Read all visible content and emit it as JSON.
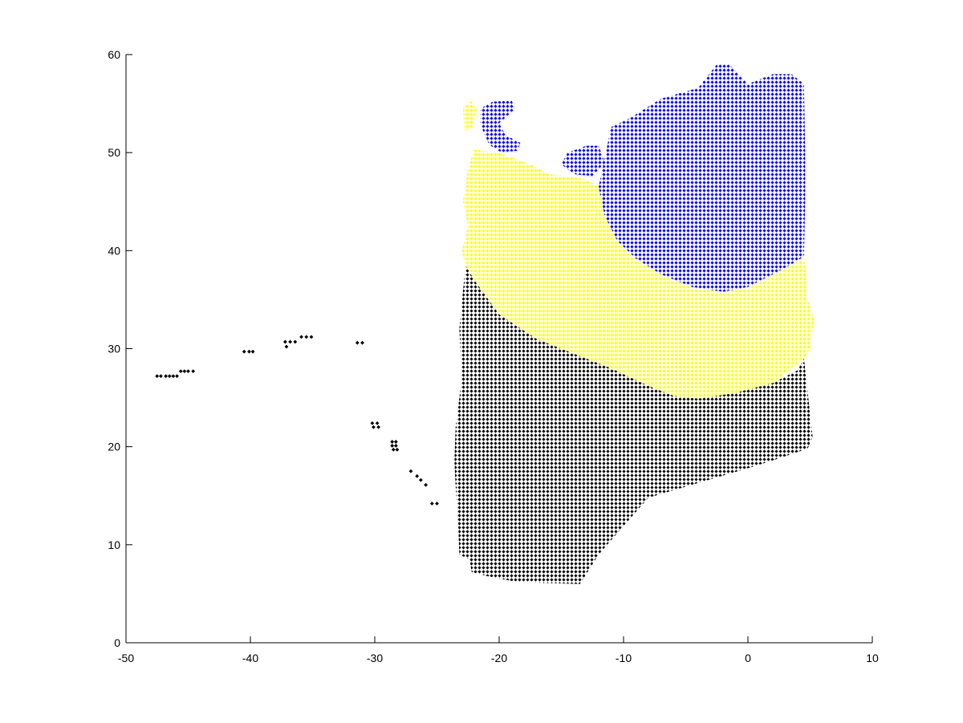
{
  "chart_data": {
    "type": "scatter",
    "title": "",
    "xlabel": "",
    "ylabel": "",
    "xlim": [
      -50,
      10
    ],
    "ylim": [
      0,
      60
    ],
    "xticks": [
      -50,
      -40,
      -30,
      -20,
      -10,
      0,
      10
    ],
    "yticks": [
      0,
      10,
      20,
      30,
      40,
      50,
      60
    ],
    "xtick_labels": [
      "-50",
      "-40",
      "-30",
      "-20",
      "-10",
      "0",
      "10"
    ],
    "ytick_labels": [
      "0",
      "10",
      "20",
      "30",
      "40",
      "50",
      "60"
    ],
    "grid": false,
    "legend": "none",
    "marker": "diamond",
    "series": [
      {
        "color": "#000000",
        "points": [
          [
            -47.5,
            27.2
          ],
          [
            -47.2,
            27.2
          ],
          [
            -46.8,
            27.2
          ],
          [
            -46.5,
            27.2
          ],
          [
            -46.2,
            27.2
          ],
          [
            -45.9,
            27.2
          ],
          [
            -45.6,
            27.7
          ],
          [
            -45.3,
            27.7
          ],
          [
            -45.0,
            27.7
          ],
          [
            -44.6,
            27.7
          ],
          [
            -40.5,
            29.7
          ],
          [
            -40.1,
            29.7
          ],
          [
            -39.8,
            29.7
          ],
          [
            -37.2,
            30.7
          ],
          [
            -36.8,
            30.7
          ],
          [
            -36.4,
            30.7
          ],
          [
            -37.1,
            30.2
          ],
          [
            -35.9,
            31.2
          ],
          [
            -35.5,
            31.2
          ],
          [
            -35.1,
            31.2
          ],
          [
            -31.4,
            30.6
          ],
          [
            -31.0,
            30.6
          ],
          [
            -30.2,
            22.4
          ],
          [
            -29.8,
            22.4
          ],
          [
            -30.1,
            22.0
          ],
          [
            -29.7,
            22.0
          ],
          [
            -28.6,
            20.5
          ],
          [
            -28.3,
            20.5
          ],
          [
            -28.6,
            20.1
          ],
          [
            -28.3,
            20.1
          ],
          [
            -28.5,
            19.7
          ],
          [
            -28.2,
            19.7
          ],
          [
            -27.1,
            17.5
          ],
          [
            -26.6,
            17.0
          ],
          [
            -26.3,
            16.6
          ],
          [
            -25.9,
            16.1
          ],
          [
            -25.4,
            14.2
          ],
          [
            -25.0,
            14.2
          ]
        ]
      },
      {
        "color": "#000000",
        "points": []
      },
      {
        "color": "#ffff00",
        "points": []
      },
      {
        "color": "#0000ff",
        "points": []
      }
    ],
    "regions": [
      {
        "color": "#000000",
        "polygon": [
          [
            -22.7,
            38.5
          ],
          [
            -22.0,
            37.0
          ],
          [
            -20.0,
            33.5
          ],
          [
            -17.0,
            31.0
          ],
          [
            -14.0,
            29.5
          ],
          [
            -11.0,
            28.0
          ],
          [
            -8.0,
            26.2
          ],
          [
            -6.0,
            25.2
          ],
          [
            -4.0,
            24.9
          ],
          [
            -1.0,
            25.5
          ],
          [
            2.0,
            26.5
          ],
          [
            4.0,
            27.8
          ],
          [
            4.5,
            29.0
          ],
          [
            5.2,
            21.0
          ],
          [
            4.8,
            19.8
          ],
          [
            2.0,
            18.6
          ],
          [
            0.0,
            17.8
          ],
          [
            -4.0,
            16.3
          ],
          [
            -8.0,
            14.8
          ],
          [
            -12.0,
            9.0
          ],
          [
            -13.5,
            6.0
          ],
          [
            -16.5,
            6.1
          ],
          [
            -19.0,
            6.3
          ],
          [
            -21.0,
            6.8
          ],
          [
            -22.2,
            7.2
          ],
          [
            -22.4,
            8.5
          ],
          [
            -23.2,
            9.0
          ],
          [
            -23.3,
            12.0
          ],
          [
            -23.5,
            16.0
          ],
          [
            -23.6,
            18.5
          ],
          [
            -23.5,
            22.0
          ],
          [
            -23.0,
            27.0
          ],
          [
            -23.2,
            32.0
          ],
          [
            -22.9,
            36.0
          ]
        ]
      },
      {
        "color": "#ffff00",
        "polygon": [
          [
            -22.5,
            48.5
          ],
          [
            -22.0,
            50.3
          ],
          [
            -20.0,
            50.0
          ],
          [
            -17.5,
            48.8
          ],
          [
            -16.0,
            47.8
          ],
          [
            -14.5,
            47.6
          ],
          [
            -13.0,
            47.3
          ],
          [
            -12.0,
            46.5
          ],
          [
            -11.5,
            43.5
          ],
          [
            -10.5,
            41.0
          ],
          [
            -9.0,
            39.2
          ],
          [
            -7.0,
            37.6
          ],
          [
            -4.5,
            36.3
          ],
          [
            -2.0,
            35.8
          ],
          [
            0.0,
            36.3
          ],
          [
            2.0,
            37.6
          ],
          [
            3.5,
            38.6
          ],
          [
            4.5,
            39.4
          ],
          [
            4.8,
            35.0
          ],
          [
            5.3,
            33.0
          ],
          [
            5.0,
            30.0
          ],
          [
            4.5,
            29.0
          ],
          [
            2.0,
            26.5
          ],
          [
            -1.0,
            25.5
          ],
          [
            -4.0,
            24.9
          ],
          [
            -6.0,
            25.2
          ],
          [
            -8.0,
            26.2
          ],
          [
            -11.0,
            28.0
          ],
          [
            -14.0,
            29.5
          ],
          [
            -17.0,
            31.0
          ],
          [
            -20.0,
            33.5
          ],
          [
            -22.0,
            37.0
          ],
          [
            -22.7,
            38.5
          ],
          [
            -23.0,
            40.0
          ],
          [
            -22.5,
            42.5
          ],
          [
            -22.9,
            45.0
          ]
        ]
      },
      {
        "color": "#ffff00",
        "polygon": [
          [
            -22.9,
            54.6
          ],
          [
            -22.3,
            55.3
          ],
          [
            -21.8,
            54.4
          ],
          [
            -22.2,
            52.4
          ],
          [
            -22.8,
            52.2
          ]
        ]
      },
      {
        "color": "#0000ff",
        "polygon": [
          [
            -12.0,
            46.5
          ],
          [
            -11.0,
            52.6
          ],
          [
            -9.5,
            53.5
          ],
          [
            -7.0,
            55.5
          ],
          [
            -4.0,
            56.6
          ],
          [
            -2.5,
            59.0
          ],
          [
            -1.5,
            59.0
          ],
          [
            0.0,
            57.0
          ],
          [
            2.0,
            58.0
          ],
          [
            3.5,
            58.0
          ],
          [
            4.5,
            57.0
          ],
          [
            4.6,
            50.0
          ],
          [
            4.6,
            45.0
          ],
          [
            4.5,
            39.4
          ],
          [
            3.5,
            38.6
          ],
          [
            2.0,
            37.6
          ],
          [
            0.0,
            36.3
          ],
          [
            -2.0,
            35.8
          ],
          [
            -4.5,
            36.3
          ],
          [
            -7.0,
            37.6
          ],
          [
            -9.0,
            39.2
          ],
          [
            -10.5,
            41.0
          ],
          [
            -11.5,
            43.5
          ]
        ]
      },
      {
        "color": "#0000ff",
        "polygon": [
          [
            -15.0,
            48.8
          ],
          [
            -14.5,
            50.0
          ],
          [
            -13.0,
            50.7
          ],
          [
            -12.0,
            50.7
          ],
          [
            -11.5,
            49.0
          ],
          [
            -12.5,
            47.6
          ],
          [
            -14.0,
            47.8
          ]
        ]
      },
      {
        "color": "#0000ff",
        "polygon": [
          [
            -21.5,
            52.8
          ],
          [
            -21.5,
            54.5
          ],
          [
            -20.5,
            55.2
          ],
          [
            -19.0,
            55.3
          ],
          [
            -18.7,
            54.5
          ],
          [
            -20.0,
            53.0
          ],
          [
            -19.5,
            51.8
          ],
          [
            -18.3,
            51.0
          ],
          [
            -18.5,
            50.2
          ],
          [
            -19.8,
            50.0
          ],
          [
            -20.8,
            50.8
          ]
        ]
      }
    ]
  }
}
